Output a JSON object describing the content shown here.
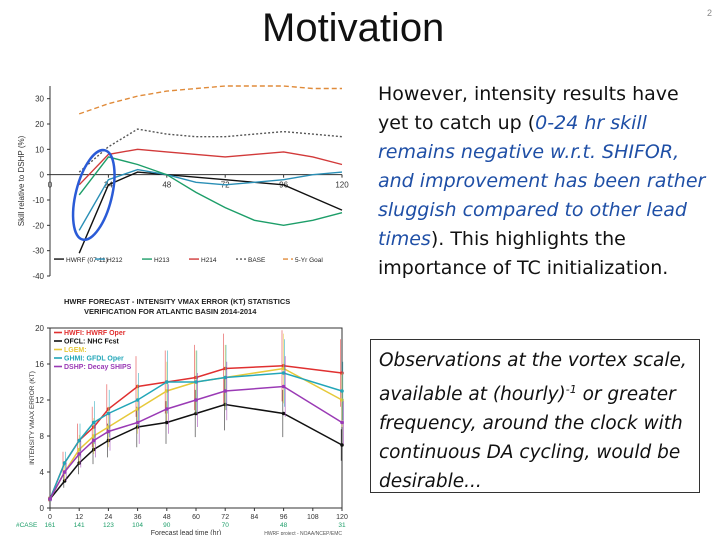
{
  "slide": {
    "title": "Motivation",
    "slide_number": "2"
  },
  "body": {
    "t1": "However, intensity results have yet to catch up (",
    "t2": "0-24 hr skill remains negative w.r.t. SHIFOR, and improvement has been rather sluggish compared to other lead times",
    "t3": "). This highlights the importance of TC initialization."
  },
  "callout": {
    "t1": "Observations at the vortex scale, available at (hourly)",
    "sup": "-1",
    "t2": " or greater frequency, around the clock with continuous DA cycling, would be desirable..."
  },
  "chart_data": [
    {
      "type": "line",
      "title": "",
      "ylabel": "Skill relative to DSHP (%)",
      "xlabel": "",
      "ylim": [
        -40,
        35
      ],
      "xlim": [
        0,
        120
      ],
      "xticks": [
        0,
        24,
        48,
        72,
        96,
        120
      ],
      "yticks": [
        30,
        20,
        10,
        0,
        -10,
        -20,
        -30,
        -40
      ],
      "x": [
        12,
        24,
        36,
        48,
        60,
        72,
        84,
        96,
        108,
        120
      ],
      "series": [
        {
          "name": "HWRF (07-11)",
          "color": "#111111",
          "dash": "",
          "values": [
            -31,
            -4,
            1,
            0,
            -1,
            -2,
            -3,
            -4,
            -9,
            -14
          ]
        },
        {
          "name": "H212",
          "color": "#2a8fb6",
          "dash": "",
          "values": [
            -22,
            -2,
            2,
            0,
            -3,
            -4,
            -3,
            -2,
            0,
            1
          ]
        },
        {
          "name": "H213",
          "color": "#1d9e69",
          "dash": "",
          "values": [
            -8,
            7,
            4,
            0,
            -7,
            -13,
            -18,
            -20,
            -18,
            -15
          ]
        },
        {
          "name": "H214",
          "color": "#d23a3a",
          "dash": "",
          "values": [
            -4,
            8,
            10,
            9,
            8,
            7,
            8,
            9,
            7,
            4
          ]
        },
        {
          "name": "BASE",
          "color": "#555555",
          "dash": "2,2",
          "values": [
            1,
            11,
            18,
            16,
            15,
            15,
            16,
            17,
            16,
            15
          ]
        },
        {
          "name": "5-Yr Goal",
          "color": "#e08b3a",
          "dash": "5,3",
          "values": [
            24,
            28,
            31,
            33,
            34,
            35,
            35,
            35,
            34,
            34
          ]
        }
      ],
      "annotation": "blue ellipse around 0-24 h"
    },
    {
      "type": "line",
      "title": "HWRF FORECAST - INTENSITY VMAX ERROR (KT) STATISTICS",
      "subtitle": "VERIFICATION FOR ATLANTIC BASIN 2014-2014",
      "xlabel": "Forecast lead time (hr)",
      "ylabel": "INTENSITY VMAX ERROR (KT)",
      "ylim": [
        0,
        20
      ],
      "yticks": [
        0,
        4,
        8,
        12,
        16,
        20
      ],
      "x": [
        0,
        6,
        12,
        18,
        24,
        36,
        48,
        60,
        72,
        96,
        120
      ],
      "xticks": [
        0,
        12,
        24,
        36,
        48,
        60,
        72,
        84,
        96,
        108,
        120
      ],
      "case_label": "#CASE",
      "cases": [
        "161",
        "141",
        "123",
        "104",
        "90",
        "70",
        "48",
        "31"
      ],
      "case_x": [
        0,
        12,
        24,
        36,
        48,
        72,
        96,
        120
      ],
      "series": [
        {
          "name": "HWFI: HWRF Oper",
          "color": "#e03030",
          "values": [
            1,
            5,
            7.5,
            9,
            11,
            13.5,
            14,
            14.5,
            15.5,
            15.8,
            15
          ]
        },
        {
          "name": "OFCL: NHC Fcst",
          "color": "#111111",
          "values": [
            1,
            3,
            5,
            6.5,
            7.5,
            9,
            9.5,
            10.5,
            11.5,
            10.5,
            7
          ]
        },
        {
          "name": "LGEM:",
          "color": "#e6c93a",
          "values": [
            1,
            4,
            6.5,
            8,
            9,
            11,
            13,
            14,
            14.5,
            15.5,
            12
          ]
        },
        {
          "name": "GHMI: GFDL Oper",
          "color": "#22a6b8",
          "values": [
            1,
            5,
            7.5,
            9.5,
            10.5,
            12,
            14,
            14,
            14.5,
            15,
            13
          ]
        },
        {
          "name": "DSHP: Decay SHIPS",
          "color": "#9a3ab5",
          "values": [
            1,
            4,
            6,
            7.5,
            8.5,
            9.5,
            11,
            12,
            13,
            13.5,
            9.5
          ]
        }
      ],
      "footer": "HWRF project - NOAA/NCEP/EMC"
    }
  ]
}
